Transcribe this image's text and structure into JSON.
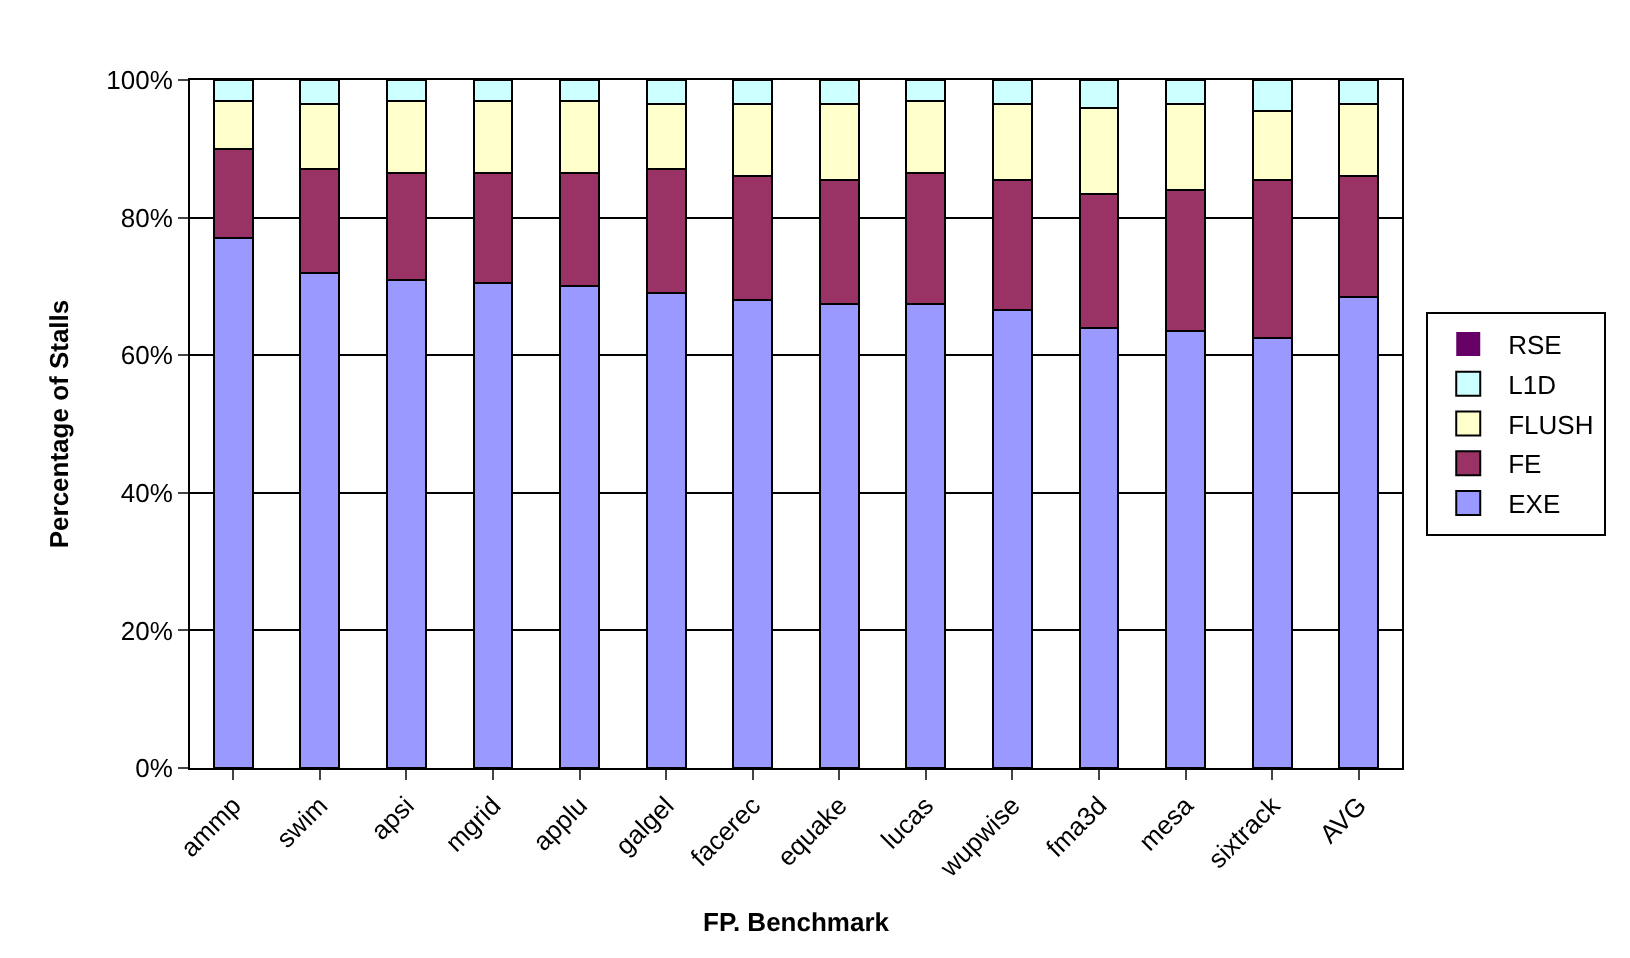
{
  "chart_data": {
    "type": "bar",
    "stacked": true,
    "xlabel": "FP. Benchmark",
    "ylabel": "Percentage of Stalls",
    "categories": [
      "ammp",
      "swim",
      "apsi",
      "mgrid",
      "applu",
      "galgel",
      "facerec",
      "equake",
      "lucas",
      "wupwise",
      "fma3d",
      "mesa",
      "sixtrack",
      "AVG"
    ],
    "series": [
      {
        "name": "EXE",
        "color": "#9999ff",
        "values": [
          77,
          72,
          71,
          70.5,
          70,
          69,
          68,
          67.5,
          67.5,
          66.5,
          64,
          63.5,
          62.5,
          68.5
        ]
      },
      {
        "name": "FE",
        "color": "#993366",
        "values": [
          13,
          15,
          15.5,
          16,
          16.5,
          18,
          18,
          18,
          19,
          19,
          19.5,
          20.5,
          23,
          17.5
        ]
      },
      {
        "name": "FLUSH",
        "color": "#ffffcc",
        "values": [
          7,
          9.5,
          10.5,
          10.5,
          10.5,
          9.5,
          10.5,
          11,
          10.5,
          11,
          12.5,
          12.5,
          10,
          10.5
        ]
      },
      {
        "name": "L1D",
        "color": "#ccffff",
        "values": [
          3,
          3.5,
          3,
          3,
          3,
          3.5,
          3.5,
          3.5,
          3,
          3.5,
          4,
          3.5,
          4.5,
          3.5
        ]
      },
      {
        "name": "RSE",
        "color": "#660066",
        "values": [
          0,
          0,
          0,
          0,
          0,
          0,
          0,
          0,
          0,
          0,
          0,
          0,
          0,
          0
        ]
      }
    ],
    "ylim": [
      0,
      100
    ],
    "yticks": [
      {
        "value": 0,
        "label": "0%"
      },
      {
        "value": 20,
        "label": "20%"
      },
      {
        "value": 40,
        "label": "40%"
      },
      {
        "value": 60,
        "label": "60%"
      },
      {
        "value": 80,
        "label": "80%"
      },
      {
        "value": 100,
        "label": "100%"
      }
    ],
    "grid": "y",
    "legend": "right"
  }
}
